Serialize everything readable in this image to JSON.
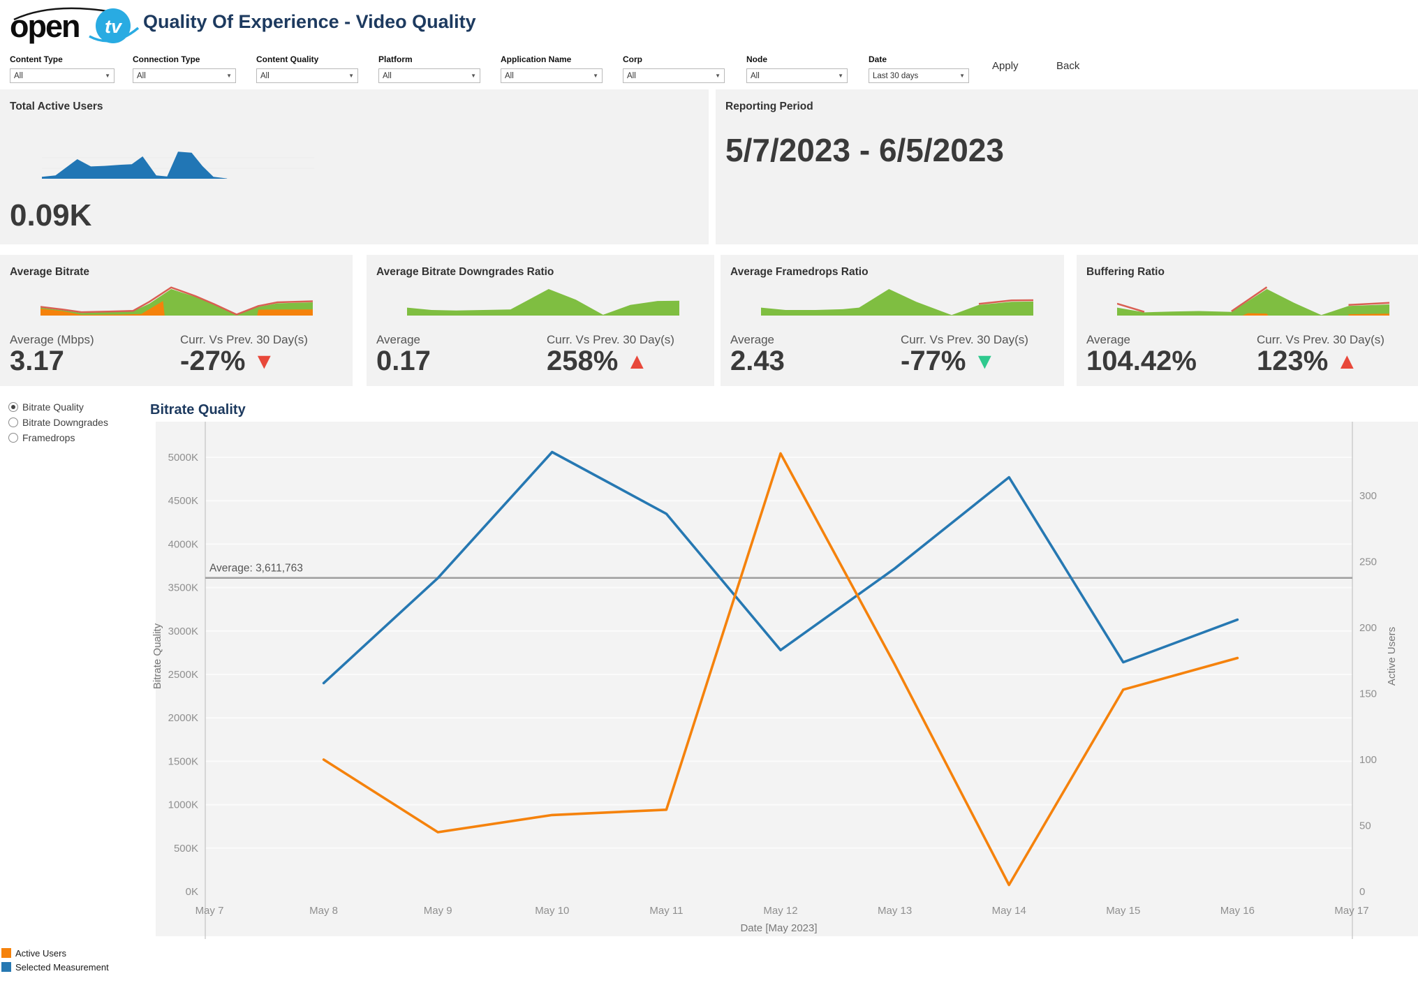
{
  "header": {
    "logo_word": "open",
    "logo_tv": "tv",
    "title": "Quality Of Experience - Video Quality"
  },
  "filters": {
    "items": [
      {
        "label": "Content Type",
        "value": "All"
      },
      {
        "label": "Connection Type",
        "value": "All"
      },
      {
        "label": "Content Quality",
        "value": "All"
      },
      {
        "label": "Platform",
        "value": "All"
      },
      {
        "label": "Application Name",
        "value": "All"
      },
      {
        "label": "Corp",
        "value": "All"
      },
      {
        "label": "Node",
        "value": "All"
      },
      {
        "label": "Date",
        "value": "Last 30 days"
      }
    ],
    "apply_label": "Apply",
    "back_label": "Back"
  },
  "row1": {
    "total_active_users": {
      "title": "Total Active Users",
      "value": "0.09K",
      "spark": {
        "series": [
          {
            "type": "area",
            "color": "#2176b5",
            "points": [
              [
                0,
                0.07
              ],
              [
                5,
                0.12
              ],
              [
                13,
                0.7
              ],
              [
                18,
                0.44
              ],
              [
                23,
                0.46
              ],
              [
                29,
                0.5
              ],
              [
                33,
                0.52
              ],
              [
                37,
                0.8
              ],
              [
                42,
                0.12
              ],
              [
                46,
                0.08
              ],
              [
                50,
                0.97
              ],
              [
                55,
                0.93
              ],
              [
                59,
                0.45
              ],
              [
                63,
                0.07
              ],
              [
                68,
                0.01
              ]
            ]
          }
        ]
      }
    },
    "reporting_period": {
      "title": "Reporting Period",
      "value": "5/7/2023 - 6/5/2023"
    }
  },
  "kpi_cards": [
    {
      "title": "Average Bitrate",
      "avg_label": "Average (Mbps)",
      "avg_value": "3.17",
      "delta_label": "Curr. Vs Prev. 30 Day(s)",
      "delta_value": "-27%",
      "delta_glyph": "▼",
      "delta_color": "#e8483a",
      "spark": {
        "series": [
          {
            "type": "area",
            "color": "#7fbe41",
            "points": [
              [
                0,
                0.3
              ],
              [
                8,
                0.2
              ],
              [
                15,
                0.1
              ],
              [
                25,
                0.13
              ],
              [
                34,
                0.16
              ],
              [
                40,
                0.45
              ],
              [
                48,
                1.0
              ],
              [
                57,
                0.7
              ],
              [
                64,
                0.4
              ],
              [
                72,
                0.02
              ],
              [
                80,
                0.33
              ],
              [
                87,
                0.46
              ],
              [
                100,
                0.5
              ]
            ]
          },
          {
            "type": "area",
            "color": "#f5820c",
            "points": [
              [
                0,
                0.26
              ],
              [
                8,
                0.17
              ],
              [
                15,
                0.03
              ],
              [
                30,
                0.04
              ],
              [
                37,
                0.06
              ],
              [
                45,
                0.55
              ],
              [
                45.6,
                0.0
              ],
              [
                79.6,
                0.0
              ],
              [
                80,
                0.22
              ],
              [
                100,
                0.23
              ]
            ]
          },
          {
            "type": "line",
            "color": "#d95f52",
            "points": [
              [
                0,
                0.33
              ],
              [
                8,
                0.23
              ],
              [
                15,
                0.13
              ],
              [
                25,
                0.15
              ],
              [
                34,
                0.18
              ],
              [
                40,
                0.52
              ],
              [
                48,
                1.06
              ],
              [
                57,
                0.73
              ],
              [
                64,
                0.42
              ],
              [
                72,
                0.04
              ],
              [
                80,
                0.36
              ],
              [
                87,
                0.5
              ],
              [
                100,
                0.54
              ]
            ]
          }
        ]
      }
    },
    {
      "title": "Average Bitrate Downgrades Ratio",
      "avg_label": "Average",
      "avg_value": "0.17",
      "delta_label": "Curr. Vs Prev. 30 Day(s)",
      "delta_value": "258%",
      "delta_glyph": "▲",
      "delta_color": "#e8483a",
      "spark": {
        "series": [
          {
            "type": "area",
            "color": "#7fbe41",
            "points": [
              [
                0,
                0.3
              ],
              [
                9,
                0.21
              ],
              [
                18,
                0.19
              ],
              [
                28,
                0.21
              ],
              [
                38,
                0.23
              ],
              [
                52,
                1.0
              ],
              [
                62,
                0.6
              ],
              [
                72,
                0.03
              ],
              [
                82,
                0.4
              ],
              [
                92,
                0.55
              ],
              [
                100,
                0.56
              ]
            ]
          }
        ]
      }
    },
    {
      "title": "Average Framedrops Ratio",
      "avg_label": "Average",
      "avg_value": "2.43",
      "delta_label": "Curr. Vs Prev. 30 Day(s)",
      "delta_value": "-77%",
      "delta_glyph": "▼",
      "delta_color": "#2fc98e",
      "spark": {
        "series": [
          {
            "type": "area",
            "color": "#f5820c",
            "points": [
              [
                0,
                0.28
              ],
              [
                2,
                0.05
              ],
              [
                3,
                0.0
              ]
            ]
          },
          {
            "type": "area",
            "color": "#7fbe41",
            "points": [
              [
                0,
                0.3
              ],
              [
                9,
                0.21
              ],
              [
                20,
                0.21
              ],
              [
                30,
                0.24
              ],
              [
                36,
                0.3
              ],
              [
                47,
                1.0
              ],
              [
                57,
                0.52
              ],
              [
                70,
                0.02
              ],
              [
                80,
                0.4
              ],
              [
                92,
                0.52
              ],
              [
                100,
                0.53
              ]
            ]
          },
          {
            "type": "line",
            "color": "#d95f52",
            "points": [
              [
                80,
                0.44
              ],
              [
                92,
                0.57
              ],
              [
                100,
                0.58
              ]
            ]
          }
        ]
      }
    },
    {
      "title": "Buffering Ratio",
      "avg_label": "Average",
      "avg_value": "104.42%",
      "delta_label": "Curr. Vs Prev. 30 Day(s)",
      "delta_value": "123%",
      "delta_glyph": "▲",
      "delta_color": "#e8483a",
      "spark": {
        "series": [
          {
            "type": "area",
            "color": "#7fbe41",
            "points": [
              [
                0,
                0.3
              ],
              [
                10,
                0.12
              ],
              [
                20,
                0.15
              ],
              [
                30,
                0.17
              ],
              [
                42,
                0.14
              ],
              [
                55,
                1.0
              ],
              [
                65,
                0.48
              ],
              [
                75,
                0.02
              ],
              [
                85,
                0.36
              ],
              [
                100,
                0.42
              ]
            ]
          },
          {
            "type": "area",
            "color": "#f5820c",
            "points": [
              [
                46,
                0.0
              ],
              [
                48,
                0.09
              ],
              [
                55,
                0.07
              ],
              [
                55.5,
                0.0
              ]
            ]
          },
          {
            "type": "area",
            "color": "#f5820c",
            "points": [
              [
                85,
                0.05
              ],
              [
                100,
                0.07
              ]
            ]
          },
          {
            "type": "line",
            "color": "#d95f52",
            "points": [
              [
                0,
                0.45
              ],
              [
                10,
                0.14
              ]
            ]
          },
          {
            "type": "line",
            "color": "#d95f52",
            "points": [
              [
                42,
                0.16
              ],
              [
                55,
                1.07
              ]
            ]
          },
          {
            "type": "line",
            "color": "#d95f52",
            "points": [
              [
                85,
                0.4
              ],
              [
                100,
                0.48
              ]
            ]
          }
        ]
      }
    }
  ],
  "measurement_selector": {
    "options": [
      "Bitrate Quality",
      "Bitrate Downgrades",
      "Framedrops"
    ],
    "selected": 0
  },
  "chart_data": {
    "type": "line",
    "title": "Bitrate Quality",
    "x_categories": [
      "May 7",
      "May 8",
      "May 9",
      "May 10",
      "May 11",
      "May 12",
      "May 13",
      "May 14",
      "May 15",
      "May 16",
      "May 17"
    ],
    "xlabel": "Date [May 2023]",
    "left_axis": {
      "label": "Bitrate Quality",
      "unit": "K",
      "min": 0,
      "max": 5000,
      "tick_step": 500,
      "ticks": [
        "0K",
        "500K",
        "1000K",
        "1500K",
        "2000K",
        "2500K",
        "3000K",
        "3500K",
        "4000K",
        "4500K",
        "5000K"
      ]
    },
    "right_axis": {
      "label": "Active Users",
      "min": 0,
      "max": 347,
      "tick_step": 50,
      "ticks": [
        0,
        50,
        100,
        150,
        200,
        250,
        300
      ]
    },
    "average_line": {
      "label": "Average: 3,611,763",
      "value_k": 3611.763
    },
    "grid": true,
    "legend_position": "bottom-left",
    "series": [
      {
        "name": "Selected Measurement",
        "axis": "left",
        "color": "#2678b2",
        "x_start_index": 1,
        "values_k": [
          2400,
          3610,
          5060,
          4350,
          2780,
          3720,
          4770,
          2640,
          3130
        ]
      },
      {
        "name": "Active Users",
        "axis": "right",
        "color": "#f5820c",
        "x_start_index": 1,
        "values": [
          100,
          45,
          58,
          62,
          332,
          172,
          5,
          153,
          177
        ]
      }
    ]
  },
  "legend": [
    {
      "label": "Active Users",
      "color": "#f5820c"
    },
    {
      "label": "Selected Measurement",
      "color": "#2678b2"
    }
  ],
  "colors": {
    "accent_blue": "#2678b2",
    "accent_orange": "#f5820c",
    "spark_green": "#7fbe41",
    "spark_red": "#d95f52",
    "up_down_red": "#e8483a",
    "up_down_green": "#2fc98e",
    "card_bg": "#f2f2f2",
    "title_navy": "#1d3a5f"
  }
}
